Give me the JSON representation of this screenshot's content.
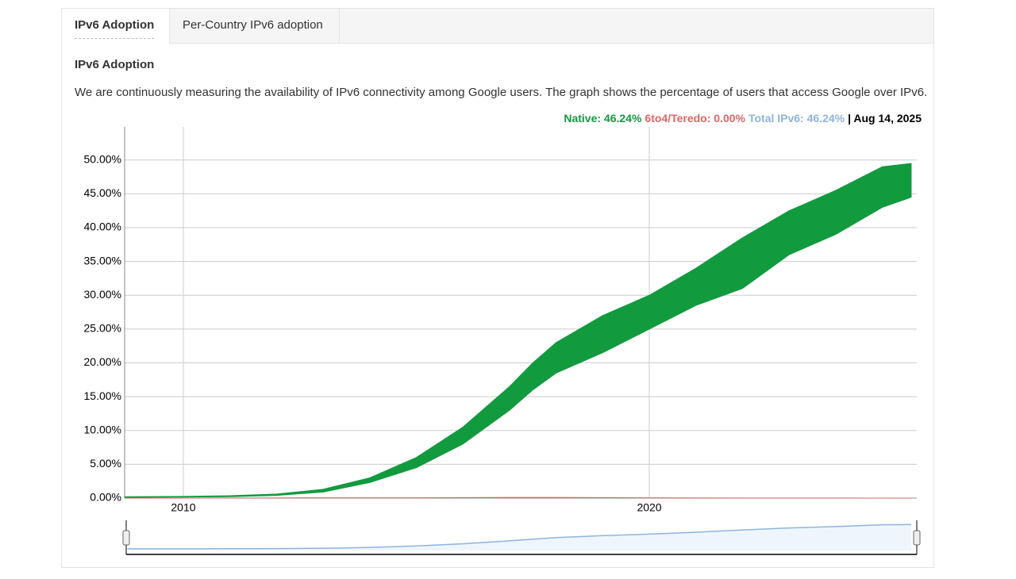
{
  "tabs": [
    "IPv6 Adoption",
    "Per-Country IPv6 adoption"
  ],
  "heading": "IPv6 Adoption",
  "description": "We are continuously measuring the availability of IPv6 connectivity among Google users. The graph shows the percentage of users that access Google over IPv6.",
  "chart_data": {
    "type": "area",
    "legend": [
      {
        "text": "Native: 46.24%",
        "color": "#129a3f"
      },
      {
        "text": "6to4/Teredo: 0.00%",
        "color": "#e06666"
      },
      {
        "text": "Total IPv6: 46.24%",
        "color": "#8fb4de"
      },
      {
        "text": "| Aug 14, 2025",
        "color": "#000000"
      }
    ],
    "x": [
      2008.75,
      2010,
      2011,
      2012,
      2013,
      2014,
      2015,
      2016,
      2017,
      2017.5,
      2018,
      2019,
      2020,
      2021,
      2022,
      2023,
      2024,
      2025,
      2025.62
    ],
    "series": [
      {
        "color": "#129a3f",
        "low": [
          0.1,
          0.15,
          0.2,
          0.4,
          0.9,
          2.3,
          4.5,
          8,
          13,
          16,
          18.5,
          21.5,
          25,
          28.5,
          31,
          36,
          39,
          43,
          44.5
        ],
        "high": [
          0.2,
          0.25,
          0.35,
          0.6,
          1.3,
          3,
          6,
          10.5,
          16.5,
          20,
          23,
          27,
          30,
          34,
          38.5,
          42.5,
          45.5,
          49,
          49.5
        ]
      },
      {
        "color": "#e06666",
        "values": [
          0,
          0,
          0.02,
          0.03,
          0.05,
          0.05,
          0.05,
          0.08,
          0.1,
          0.1,
          0.1,
          0.08,
          0.05,
          0.03,
          0.02,
          0.01,
          0.01,
          0,
          0
        ]
      }
    ],
    "xlim": [
      2008.74,
      2025.74
    ],
    "xticks": [
      2010,
      2020
    ],
    "ylim": [
      0,
      54.9
    ],
    "yticks": [
      {
        "value": 0,
        "label": "0.00%"
      },
      {
        "value": 5,
        "label": "5.00%"
      },
      {
        "value": 10,
        "label": "10.00%"
      },
      {
        "value": 15,
        "label": "15.00%"
      },
      {
        "value": 20,
        "label": "20.00%"
      },
      {
        "value": 25,
        "label": "25.00%"
      },
      {
        "value": 30,
        "label": "30.00%"
      },
      {
        "value": 35,
        "label": "35.00%"
      },
      {
        "value": 40,
        "label": "40.00%"
      },
      {
        "value": 45,
        "label": "45.00%"
      },
      {
        "value": 50,
        "label": "50.00%"
      }
    ],
    "grid": true
  }
}
